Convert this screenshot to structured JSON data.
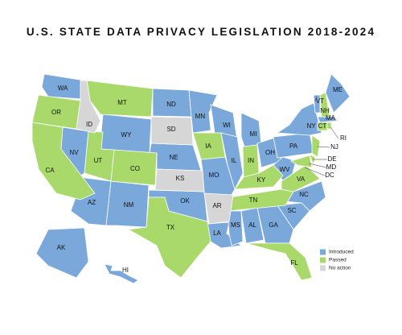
{
  "title": "U.S. STATE DATA PRIVACY LEGISLATION 2018-2024",
  "legend": [
    {
      "label": "Introduced",
      "color": "#7aa8da",
      "states": [
        "WA",
        "NV",
        "AZ",
        "WY",
        "NM",
        "ND",
        "NE",
        "OK",
        "MN",
        "MO",
        "LA",
        "WI",
        "IL",
        "MI",
        "MS",
        "AL",
        "GA",
        "OH",
        "WV",
        "NC",
        "SC",
        "PA",
        "NY",
        "ME",
        "VT",
        "MA",
        "DC",
        "AK",
        "HI"
      ]
    },
    {
      "label": "Passed",
      "color": "#a9d86b",
      "states": [
        "OR",
        "CA",
        "MT",
        "UT",
        "CO",
        "TX",
        "IA",
        "IN",
        "KY",
        "TN",
        "VA",
        "FL",
        "NH",
        "CT",
        "NJ",
        "DE",
        "MD",
        "RI"
      ]
    },
    {
      "label": "No action",
      "color": "#d6d6d6",
      "states": [
        "ID",
        "SD",
        "KS",
        "AR"
      ]
    }
  ]
}
